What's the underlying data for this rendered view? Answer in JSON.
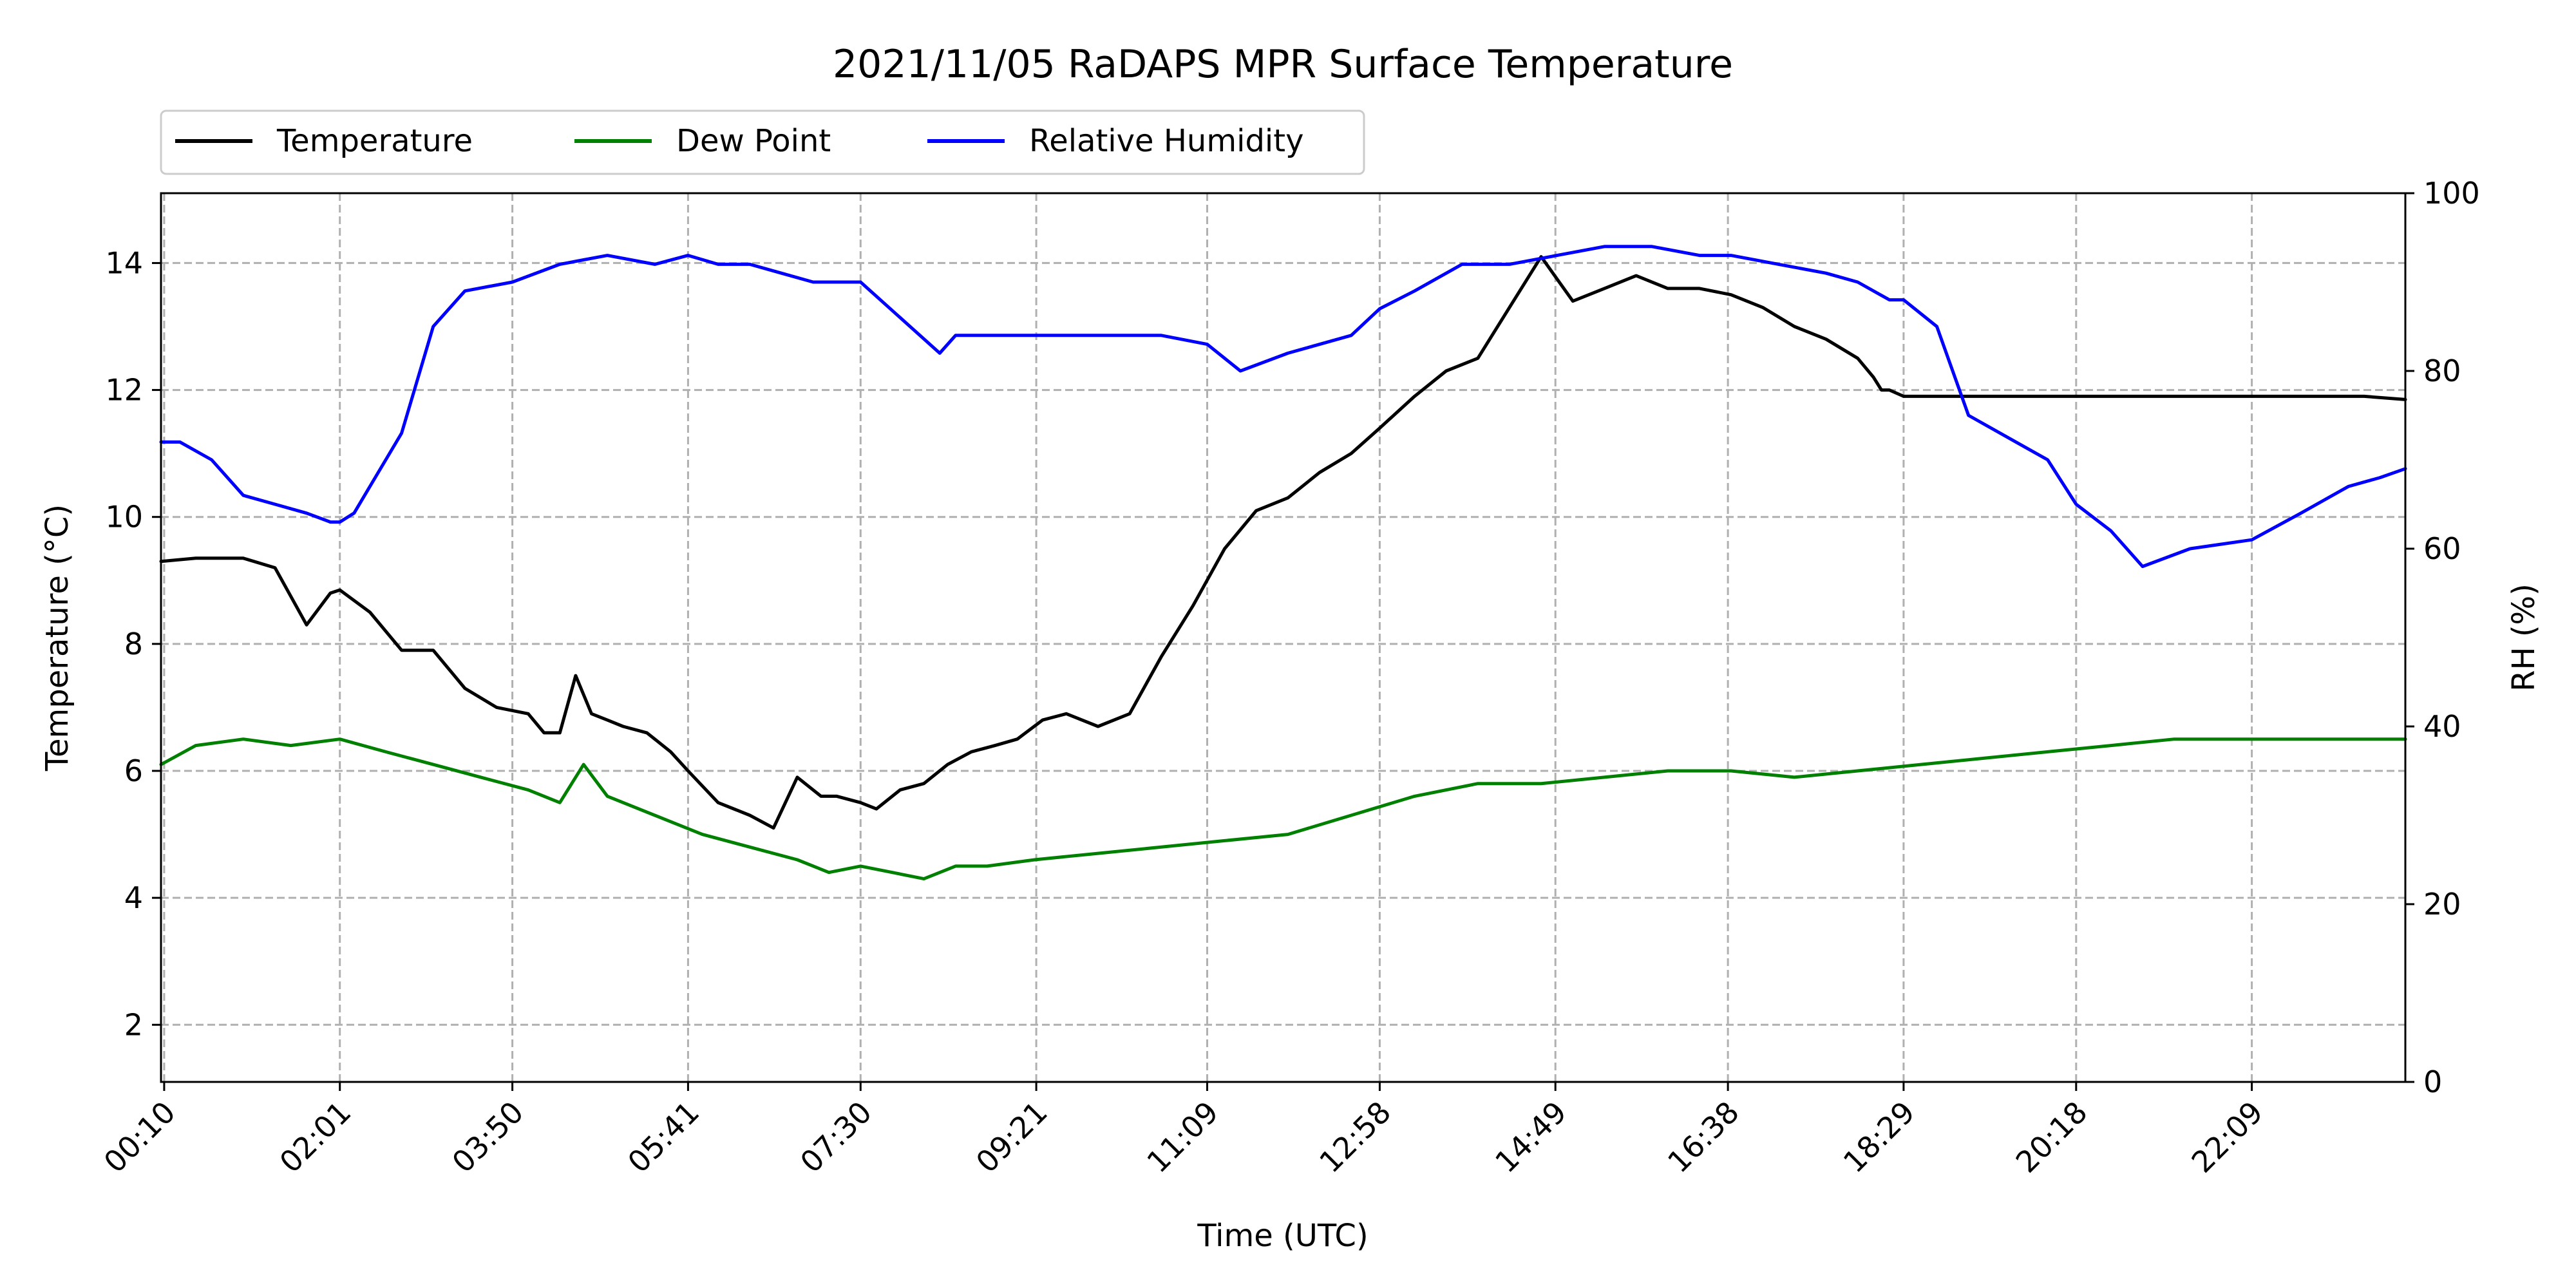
{
  "chart_data": {
    "type": "line",
    "title": "2021/11/05 RaDAPS MPR Surface Temperature",
    "xlabel": "Time (UTC)",
    "ylabel": "Temperature ($^\\circ$C)",
    "ylabel_display": "Temperature (°C)",
    "y2label": "RH (%)",
    "x_unit": "minutes since 00:00 UTC",
    "xlim": [
      8,
      1426
    ],
    "ylim": [
      1.1,
      15.1
    ],
    "y2lim": [
      0,
      100
    ],
    "yticks": [
      2,
      4,
      6,
      8,
      10,
      12,
      14
    ],
    "y2ticks": [
      0,
      20,
      40,
      60,
      80,
      100
    ],
    "xtick_labels": [
      "00:10",
      "02:01",
      "03:50",
      "05:41",
      "07:30",
      "09:21",
      "11:09",
      "12:58",
      "14:49",
      "16:38",
      "18:29",
      "20:18",
      "22:09"
    ],
    "xtick_minutes": [
      10,
      121,
      230,
      341,
      450,
      561,
      669,
      778,
      889,
      998,
      1109,
      1218,
      1329
    ],
    "grid": true,
    "legend_position": "top-left, above plot",
    "colors": {
      "Temperature": "#000000",
      "Dew Point": "#008000",
      "Relative Humidity": "#0000ff"
    },
    "series": [
      {
        "name": "Temperature",
        "axis": "left",
        "x": [
          8,
          30,
          60,
          80,
          100,
          115,
          121,
          140,
          160,
          180,
          200,
          220,
          240,
          250,
          260,
          270,
          280,
          290,
          300,
          315,
          330,
          341,
          360,
          380,
          395,
          410,
          425,
          435,
          450,
          460,
          475,
          490,
          505,
          520,
          535,
          549,
          565,
          580,
          600,
          620,
          640,
          660,
          680,
          700,
          720,
          740,
          760,
          778,
          800,
          820,
          840,
          860,
          880,
          900,
          920,
          940,
          960,
          980,
          1000,
          1020,
          1040,
          1060,
          1080,
          1090,
          1095,
          1100,
          1109,
          1115,
          1125,
          1135,
          1150,
          1170,
          1190,
          1218,
          1240,
          1260,
          1290,
          1329,
          1350,
          1380,
          1400,
          1426
        ],
        "y": [
          9.3,
          9.35,
          9.35,
          9.2,
          8.3,
          8.8,
          8.85,
          8.5,
          7.9,
          7.9,
          7.3,
          7.0,
          6.9,
          6.6,
          6.6,
          7.5,
          6.9,
          6.8,
          6.7,
          6.6,
          6.3,
          6.0,
          5.5,
          5.3,
          5.1,
          5.9,
          5.6,
          5.6,
          5.5,
          5.4,
          5.7,
          5.8,
          6.1,
          6.3,
          6.4,
          6.5,
          6.8,
          6.9,
          6.7,
          6.9,
          7.8,
          8.6,
          9.5,
          10.1,
          10.3,
          10.7,
          11.0,
          11.4,
          11.9,
          12.3,
          12.5,
          13.3,
          14.1,
          13.4,
          13.6,
          13.8,
          13.6,
          13.6,
          13.5,
          13.3,
          13.0,
          12.8,
          12.5,
          12.2,
          12.0,
          12.0,
          11.9,
          11.9,
          11.9,
          11.9,
          11.9,
          11.9,
          11.9,
          11.9,
          11.9,
          11.9,
          11.9,
          11.9,
          11.9,
          11.9,
          11.9,
          11.85
        ]
      },
      {
        "name": "Dew Point",
        "axis": "left",
        "x": [
          8,
          30,
          60,
          90,
          121,
          150,
          180,
          210,
          240,
          260,
          275,
          290,
          320,
          350,
          380,
          410,
          430,
          450,
          470,
          490,
          510,
          530,
          560,
          600,
          640,
          680,
          720,
          760,
          800,
          840,
          880,
          920,
          960,
          1000,
          1040,
          1080,
          1120,
          1160,
          1200,
          1240,
          1280,
          1320,
          1360,
          1400,
          1426
        ],
        "y": [
          6.1,
          6.4,
          6.5,
          6.4,
          6.5,
          6.3,
          6.1,
          5.9,
          5.7,
          5.5,
          6.1,
          5.6,
          5.3,
          5.0,
          4.8,
          4.6,
          4.4,
          4.5,
          4.4,
          4.3,
          4.5,
          4.5,
          4.6,
          4.7,
          4.8,
          4.9,
          5.0,
          5.3,
          5.6,
          5.8,
          5.8,
          5.9,
          6.0,
          6.0,
          5.9,
          6.0,
          6.1,
          6.2,
          6.3,
          6.4,
          6.5,
          6.5,
          6.5,
          6.5,
          6.5
        ]
      },
      {
        "name": "Relative Humidity",
        "axis": "right",
        "x": [
          8,
          20,
          40,
          60,
          80,
          100,
          115,
          121,
          130,
          140,
          160,
          180,
          200,
          230,
          260,
          290,
          320,
          341,
          360,
          380,
          400,
          420,
          450,
          500,
          510,
          530,
          560,
          600,
          640,
          669,
          690,
          720,
          760,
          778,
          800,
          830,
          860,
          890,
          920,
          950,
          980,
          1000,
          1030,
          1060,
          1080,
          1100,
          1109,
          1130,
          1150,
          1180,
          1200,
          1218,
          1240,
          1260,
          1290,
          1329,
          1360,
          1390,
          1410,
          1426
        ],
        "y": [
          72,
          72,
          70,
          66,
          65,
          64,
          63,
          63,
          64,
          67,
          73,
          85,
          89,
          90,
          92,
          93,
          92,
          93,
          92,
          92,
          91,
          90,
          90,
          82,
          84,
          84,
          84,
          84,
          84,
          83,
          80,
          82,
          84,
          87,
          89,
          92,
          92,
          93,
          94,
          94,
          93,
          93,
          92,
          91,
          90,
          88,
          88,
          85,
          75,
          72,
          70,
          65,
          62,
          58,
          60,
          61,
          64,
          67,
          68,
          69
        ]
      }
    ]
  }
}
